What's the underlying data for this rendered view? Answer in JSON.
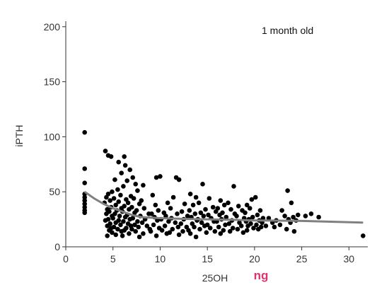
{
  "colors": {
    "point": "#000000",
    "trend": "#808080",
    "axis": "#333333",
    "unit": "#e0336e"
  },
  "chart_data": {
    "type": "scatter",
    "title": "",
    "annotation": "1 month old",
    "xlabel": "25OH",
    "ylabel": "iPTH",
    "unit_label": "ng",
    "xlim": [
      0,
      32
    ],
    "ylim": [
      0,
      205
    ],
    "xticks": [
      0,
      5,
      10,
      15,
      20,
      25,
      30
    ],
    "yticks": [
      0,
      50,
      100,
      150,
      200
    ],
    "grid": false,
    "legend": "none",
    "trend": [
      [
        2,
        50
      ],
      [
        3,
        44
      ],
      [
        4,
        39
      ],
      [
        5,
        35
      ],
      [
        6,
        32
      ],
      [
        7,
        29
      ],
      [
        8,
        27
      ],
      [
        10,
        26
      ],
      [
        12,
        25.5
      ],
      [
        15,
        25
      ],
      [
        18,
        24.5
      ],
      [
        20,
        24
      ],
      [
        25,
        23.5
      ],
      [
        31.5,
        22
      ]
    ],
    "points": [
      [
        2,
        104
      ],
      [
        2,
        71
      ],
      [
        2,
        58
      ],
      [
        2,
        48
      ],
      [
        2,
        45
      ],
      [
        2,
        42
      ],
      [
        2,
        39
      ],
      [
        2,
        36
      ],
      [
        2,
        33
      ],
      [
        2,
        31
      ],
      [
        4.2,
        87
      ],
      [
        4.5,
        83
      ],
      [
        4.8,
        82
      ],
      [
        6.2,
        82
      ],
      [
        5.6,
        77
      ],
      [
        6.3,
        74
      ],
      [
        6.8,
        70
      ],
      [
        5.9,
        67
      ],
      [
        7.1,
        63
      ],
      [
        5.2,
        61
      ],
      [
        6.5,
        60
      ],
      [
        7.4,
        57
      ],
      [
        8.2,
        56
      ],
      [
        6.1,
        55
      ],
      [
        5.5,
        52
      ],
      [
        4.9,
        50
      ],
      [
        7.6,
        51
      ],
      [
        4.5,
        48
      ],
      [
        5.8,
        47
      ],
      [
        6.9,
        46
      ],
      [
        4.3,
        45
      ],
      [
        5.1,
        44
      ],
      [
        7.2,
        44
      ],
      [
        6.4,
        43
      ],
      [
        4.7,
        42
      ],
      [
        5.6,
        41
      ],
      [
        8.0,
        42
      ],
      [
        6.6,
        40
      ],
      [
        4.1,
        40
      ],
      [
        7.8,
        39
      ],
      [
        5.3,
        38
      ],
      [
        6.2,
        37
      ],
      [
        4.8,
        36
      ],
      [
        7.0,
        36
      ],
      [
        5.9,
        35
      ],
      [
        4.4,
        34
      ],
      [
        6.7,
        34
      ],
      [
        8.3,
        35
      ],
      [
        5.4,
        33
      ],
      [
        7.5,
        33
      ],
      [
        4.6,
        32
      ],
      [
        6.0,
        32
      ],
      [
        7.3,
        31
      ],
      [
        5.2,
        30
      ],
      [
        4.3,
        30
      ],
      [
        8.8,
        30
      ],
      [
        6.5,
        29
      ],
      [
        5.7,
        28
      ],
      [
        4.9,
        28
      ],
      [
        7.9,
        28
      ],
      [
        6.3,
        27
      ],
      [
        5.0,
        26
      ],
      [
        7.1,
        26
      ],
      [
        4.5,
        25
      ],
      [
        6.8,
        25
      ],
      [
        8.4,
        25
      ],
      [
        5.6,
        24
      ],
      [
        4.2,
        24
      ],
      [
        7.6,
        23
      ],
      [
        6.1,
        23
      ],
      [
        5.3,
        22
      ],
      [
        8.1,
        22
      ],
      [
        4.7,
        21
      ],
      [
        6.6,
        21
      ],
      [
        7.3,
        20
      ],
      [
        5.8,
        20
      ],
      [
        4.4,
        19
      ],
      [
        6.9,
        19
      ],
      [
        8.6,
        19
      ],
      [
        5.1,
        18
      ],
      [
        7.7,
        18
      ],
      [
        6.4,
        17
      ],
      [
        4.8,
        17
      ],
      [
        5.5,
        16
      ],
      [
        7.0,
        16
      ],
      [
        8.9,
        16
      ],
      [
        6.2,
        15
      ],
      [
        4.6,
        15
      ],
      [
        5.9,
        14
      ],
      [
        7.4,
        14
      ],
      [
        4.9,
        13
      ],
      [
        6.7,
        12
      ],
      [
        5.3,
        11
      ],
      [
        8.2,
        12
      ],
      [
        4.4,
        10
      ],
      [
        6.0,
        10
      ],
      [
        7.8,
        9
      ],
      [
        9.6,
        63
      ],
      [
        10.0,
        64
      ],
      [
        11.7,
        63
      ],
      [
        12.0,
        61
      ],
      [
        9.2,
        47
      ],
      [
        11.4,
        45
      ],
      [
        10.8,
        40
      ],
      [
        9.5,
        38
      ],
      [
        12.6,
        39
      ],
      [
        11.1,
        35
      ],
      [
        9.8,
        33
      ],
      [
        12.3,
        32
      ],
      [
        10.4,
        31
      ],
      [
        9.1,
        30
      ],
      [
        11.8,
        30
      ],
      [
        10.6,
        28
      ],
      [
        12.9,
        28
      ],
      [
        9.4,
        27
      ],
      [
        11.2,
        26
      ],
      [
        10.1,
        25
      ],
      [
        12.5,
        25
      ],
      [
        9.7,
        24
      ],
      [
        10.9,
        23
      ],
      [
        11.6,
        22
      ],
      [
        12.2,
        21
      ],
      [
        9.3,
        20
      ],
      [
        10.5,
        19
      ],
      [
        11.9,
        18
      ],
      [
        12.8,
        18
      ],
      [
        9.9,
        17
      ],
      [
        11.3,
        16
      ],
      [
        10.2,
        15
      ],
      [
        12.4,
        14
      ],
      [
        9.0,
        14
      ],
      [
        11.0,
        13
      ],
      [
        10.7,
        12
      ],
      [
        12.0,
        11
      ],
      [
        9.6,
        10
      ],
      [
        13.2,
        48
      ],
      [
        14.5,
        57
      ],
      [
        13.8,
        45
      ],
      [
        15.2,
        44
      ],
      [
        14.1,
        40
      ],
      [
        13.5,
        38
      ],
      [
        15.6,
        36
      ],
      [
        14.8,
        34
      ],
      [
        13.1,
        33
      ],
      [
        15.9,
        32
      ],
      [
        14.3,
        31
      ],
      [
        13.7,
        30
      ],
      [
        15.1,
        29
      ],
      [
        14.6,
        28
      ],
      [
        13.3,
        27
      ],
      [
        15.4,
        26
      ],
      [
        14.0,
        25
      ],
      [
        13.9,
        24
      ],
      [
        15.7,
        23
      ],
      [
        14.4,
        22
      ],
      [
        13.4,
        21
      ],
      [
        15.0,
        20
      ],
      [
        14.7,
        19
      ],
      [
        13.6,
        18
      ],
      [
        15.3,
        17
      ],
      [
        14.2,
        16
      ],
      [
        13.0,
        15
      ],
      [
        15.8,
        14
      ],
      [
        14.9,
        13
      ],
      [
        13.2,
        12
      ],
      [
        13.8,
        9
      ],
      [
        16.4,
        42
      ],
      [
        17.2,
        40
      ],
      [
        16.8,
        38
      ],
      [
        17.8,
        55
      ],
      [
        18.3,
        37
      ],
      [
        16.1,
        35
      ],
      [
        17.5,
        34
      ],
      [
        18.7,
        33
      ],
      [
        16.6,
        31
      ],
      [
        17.9,
        30
      ],
      [
        16.3,
        29
      ],
      [
        18.1,
        28
      ],
      [
        17.0,
        27
      ],
      [
        18.9,
        26
      ],
      [
        16.5,
        25
      ],
      [
        17.6,
        24
      ],
      [
        16.0,
        23
      ],
      [
        18.4,
        22
      ],
      [
        17.3,
        21
      ],
      [
        16.9,
        20
      ],
      [
        18.6,
        19
      ],
      [
        16.2,
        18
      ],
      [
        17.7,
        17
      ],
      [
        18.2,
        16
      ],
      [
        16.7,
        15
      ],
      [
        17.4,
        14
      ],
      [
        18.8,
        13
      ],
      [
        16.4,
        12
      ],
      [
        19.2,
        38
      ],
      [
        19.7,
        43
      ],
      [
        20.1,
        45
      ],
      [
        19.5,
        35
      ],
      [
        20.6,
        33
      ],
      [
        19.0,
        31
      ],
      [
        20.3,
        29
      ],
      [
        19.8,
        27
      ],
      [
        20.9,
        26
      ],
      [
        19.4,
        25
      ],
      [
        20.5,
        24
      ],
      [
        19.1,
        23
      ],
      [
        20.8,
        22
      ],
      [
        19.6,
        21
      ],
      [
        20.2,
        20
      ],
      [
        19.3,
        19
      ],
      [
        20.7,
        18
      ],
      [
        19.9,
        17
      ],
      [
        20.4,
        16
      ],
      [
        19.2,
        15
      ],
      [
        21.5,
        26
      ],
      [
        22.3,
        24
      ],
      [
        21.9,
        22
      ],
      [
        22.7,
        20
      ],
      [
        21.2,
        19
      ],
      [
        22.1,
        18
      ],
      [
        22.9,
        33
      ],
      [
        23.5,
        51
      ],
      [
        23.9,
        40
      ],
      [
        23.2,
        28
      ],
      [
        24.1,
        27
      ],
      [
        23.6,
        25
      ],
      [
        24.4,
        24
      ],
      [
        23.8,
        22
      ],
      [
        24.6,
        29
      ],
      [
        25.4,
        28
      ],
      [
        23.4,
        16
      ],
      [
        24.2,
        14
      ],
      [
        26.0,
        30
      ],
      [
        26.8,
        27
      ],
      [
        31.5,
        10
      ]
    ]
  }
}
